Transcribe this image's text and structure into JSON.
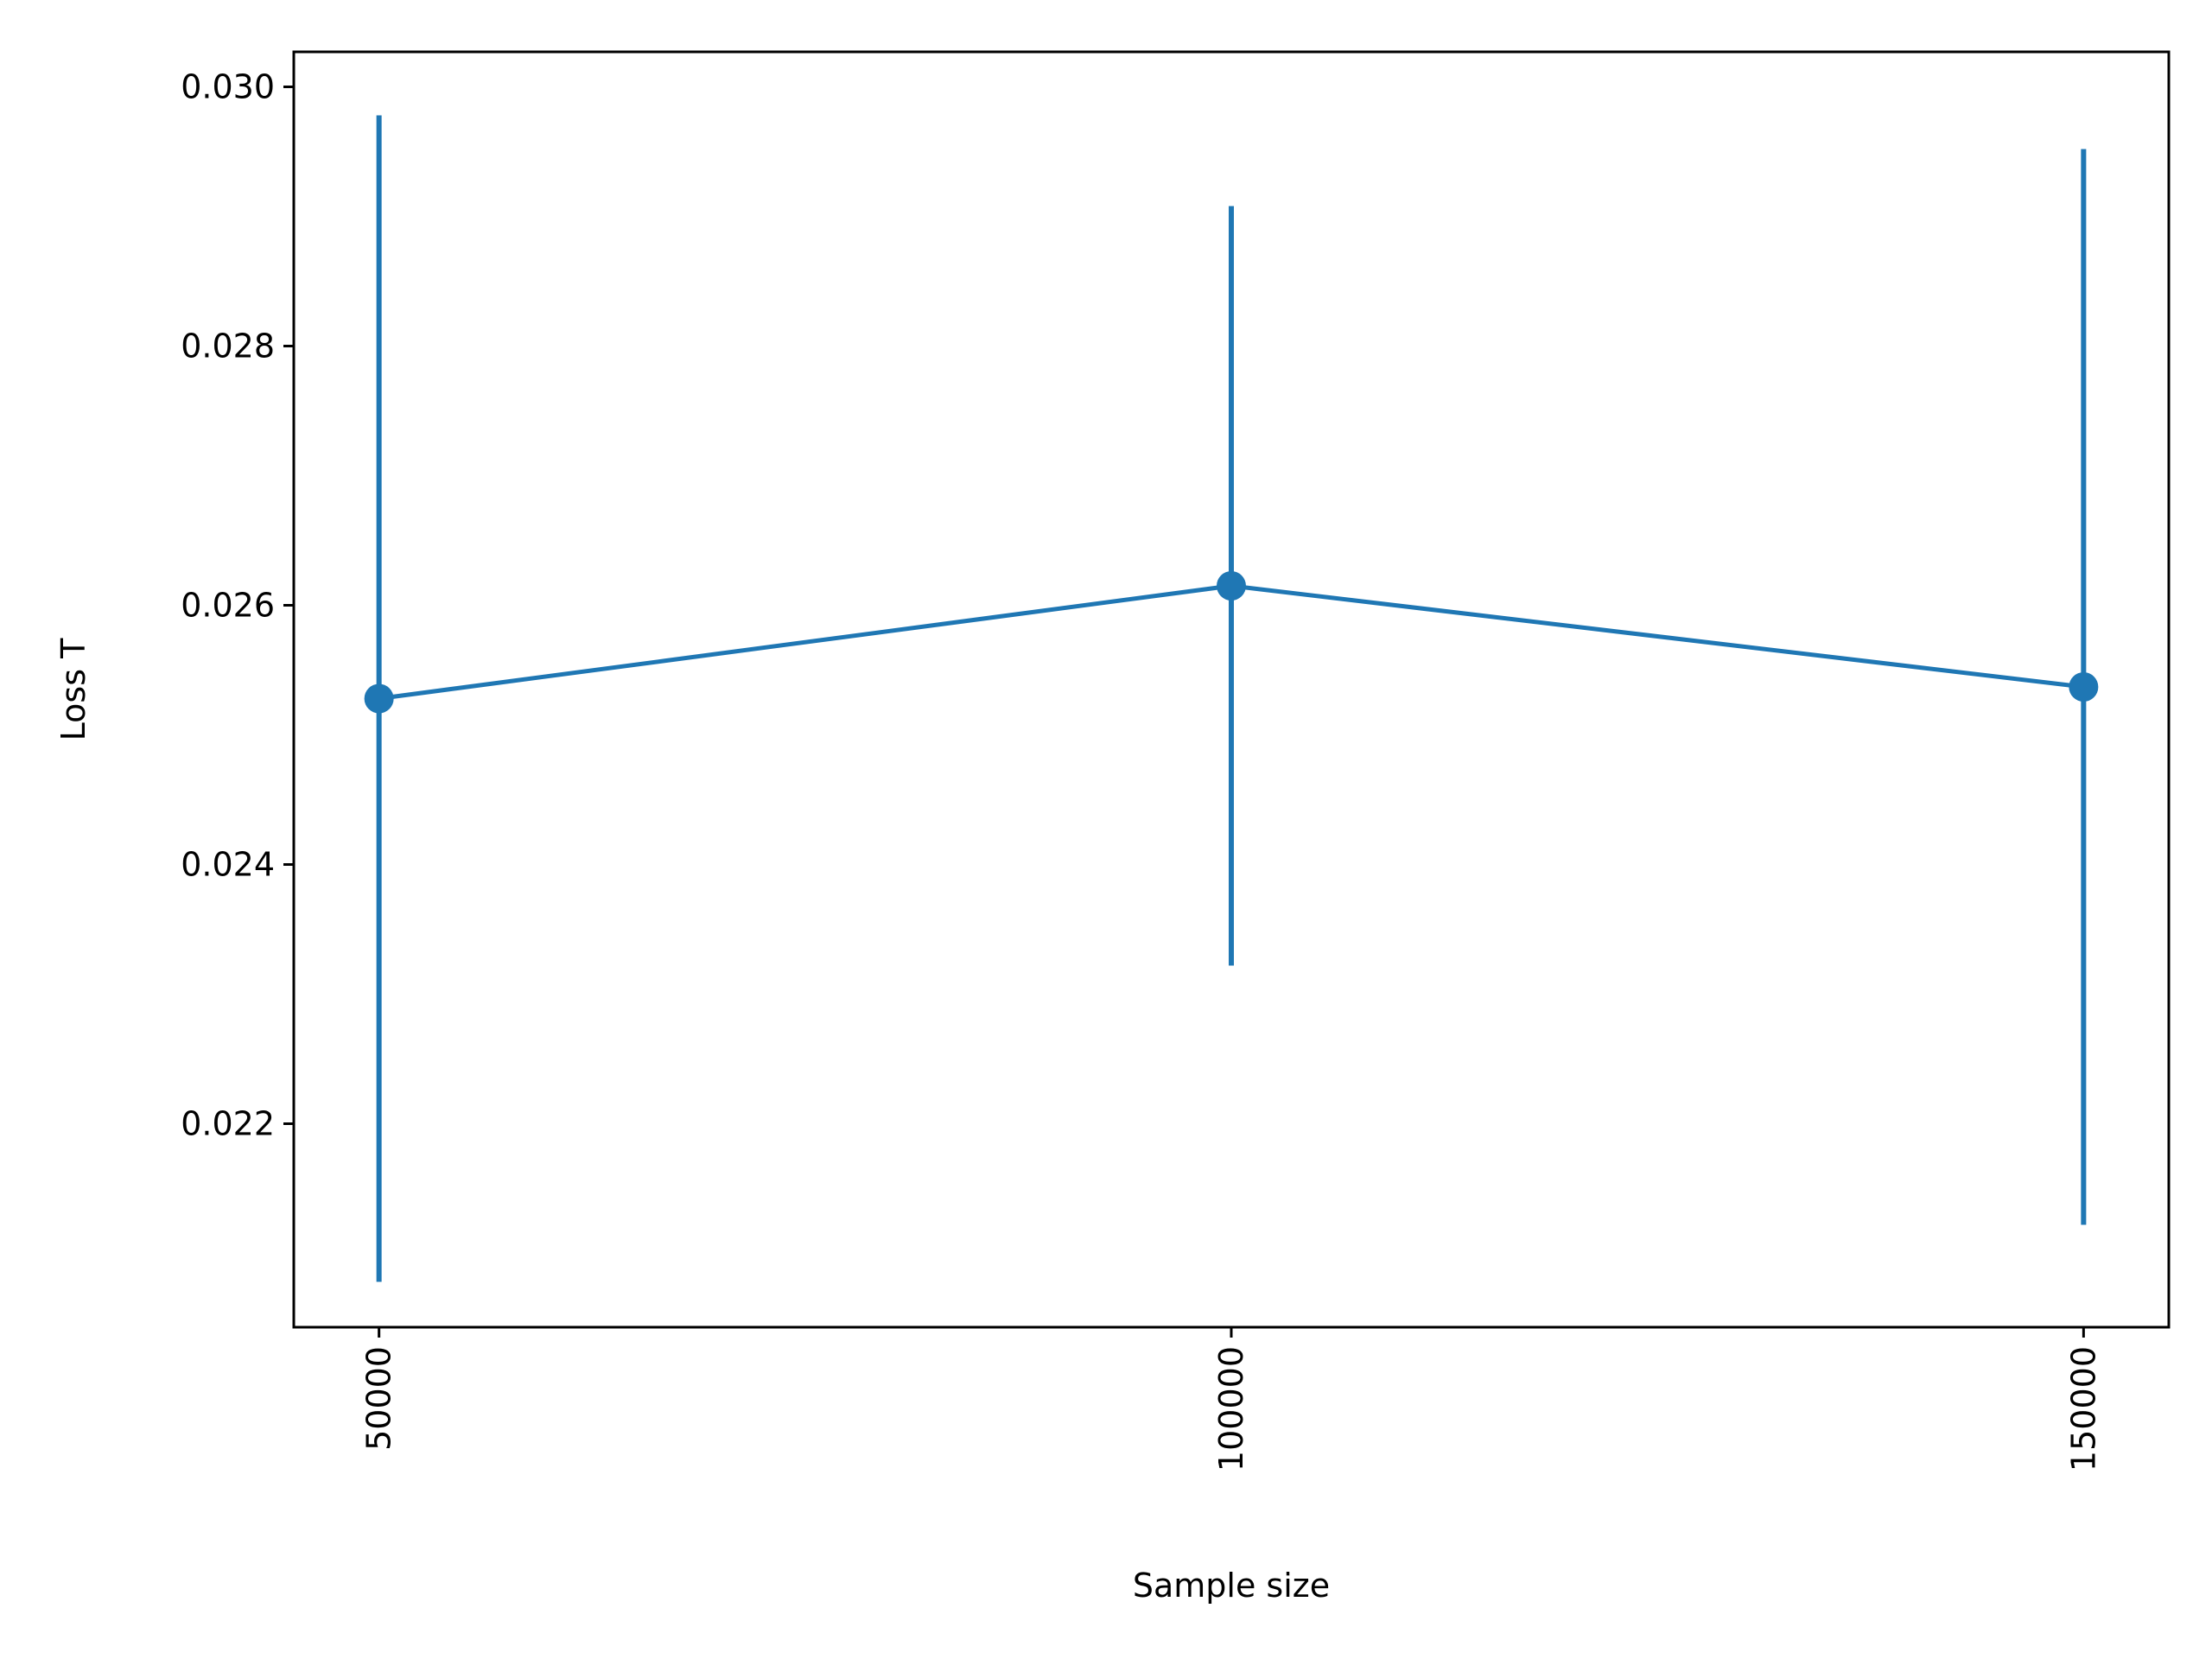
{
  "chart_data": {
    "type": "line",
    "title": "",
    "xlabel": "Sample size",
    "ylabel": "Loss T",
    "x": [
      50000,
      100000,
      150000
    ],
    "series": [
      {
        "values": [
          0.02528,
          0.02615,
          0.02537
        ],
        "error_low": [
          0.02078,
          0.02322,
          0.02122
        ],
        "error_high": [
          0.02978,
          0.02908,
          0.02952
        ],
        "color": "#1f77b4",
        "marker": "circle"
      }
    ],
    "xticks": [
      50000,
      100000,
      150000
    ],
    "xtick_labels": [
      "50000",
      "100000",
      "150000"
    ],
    "xtick_rotation": "vertical",
    "yticks": [
      0.022,
      0.024,
      0.026,
      0.028,
      0.03
    ],
    "ytick_labels": [
      "0.022",
      "0.024",
      "0.026",
      "0.028",
      "0.030"
    ],
    "xlim": [
      45000,
      155000
    ],
    "ylim": [
      0.02043,
      0.03027
    ],
    "grid": false,
    "legend": false
  }
}
